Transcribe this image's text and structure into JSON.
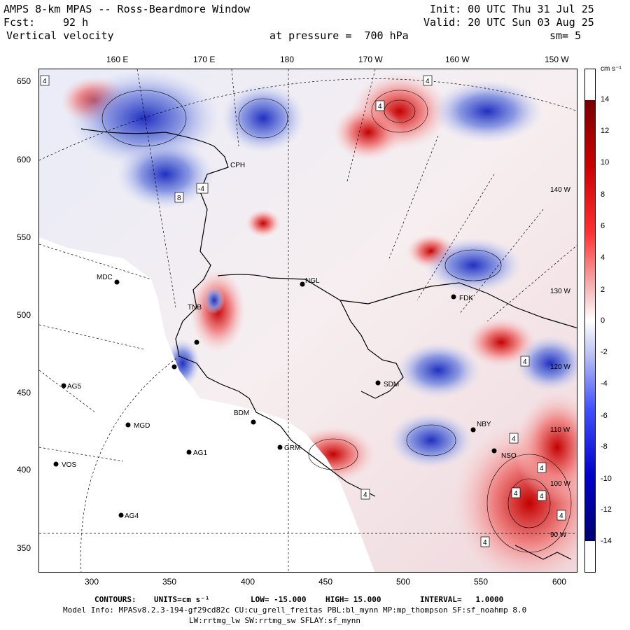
{
  "header": {
    "title": "AMPS 8-km MPAS -- Ross-Beardmore Window",
    "forecast_label": "Fcst:",
    "forecast_value": "92 h",
    "field": "Vertical velocity",
    "init": "Init: 00 UTC Thu 31 Jul 25",
    "valid": "Valid: 20 UTC Sun 03 Aug 25",
    "pressure": "at pressure =  700 hPa",
    "smoothing": "sm= 5"
  },
  "top_axis": [
    "160 E",
    "170 E",
    "180",
    "170 W",
    "160 W",
    "150 W"
  ],
  "left_axis": [
    "650",
    "600",
    "550",
    "500",
    "450",
    "400",
    "350"
  ],
  "bottom_axis": [
    "300",
    "350",
    "400",
    "450",
    "500",
    "550",
    "600"
  ],
  "colorbar": {
    "unit": "cm s⁻¹",
    "labels": [
      "14",
      "12",
      "10",
      "8",
      "6",
      "4",
      "2",
      "0",
      "-2",
      "-4",
      "-6",
      "-8",
      "-10",
      "-12",
      "-14"
    ],
    "range": [
      -15,
      15
    ],
    "colors": {
      "strong_positive": "#8b0000",
      "positive": "#ff0000",
      "weak_positive": "#f4c4c4",
      "zero": "#ffffff",
      "weak_negative": "#c4c8f0",
      "negative": "#0000ff",
      "strong_negative": "#000080"
    }
  },
  "stations": [
    {
      "code": "CPH"
    },
    {
      "code": "NGL"
    },
    {
      "code": "FDK"
    },
    {
      "code": "MDC"
    },
    {
      "code": "TNB"
    },
    {
      "code": "AG5"
    },
    {
      "code": "SDM"
    },
    {
      "code": "BDM"
    },
    {
      "code": "MGD"
    },
    {
      "code": "AG1"
    },
    {
      "code": "GRM"
    },
    {
      "code": "VOS"
    },
    {
      "code": "AG4"
    },
    {
      "code": "NBY"
    },
    {
      "code": "NSO"
    }
  ],
  "meridian_labels": [
    "140 W",
    "130 W",
    "120 W",
    "110 W",
    "100 W",
    "90 W"
  ],
  "footer": {
    "contours_label": "CONTOURS:",
    "units_label": "UNITS=cm s⁻¹",
    "low_label": "LOW= -15.000",
    "high_label": "HIGH= 15.000",
    "interval_label": "INTERVAL=   1.0000",
    "model_info": "Model Info: MPASv8.2.3-194-gf29cd82c CU:cu_grell_freitas PBL:bl_mynn MP:mp_thompson SF:sf_noahmp 8.0",
    "model_info2": "LW:rrtmg_lw SW:rrtmg_sw SFLAY:sf_mynn"
  }
}
